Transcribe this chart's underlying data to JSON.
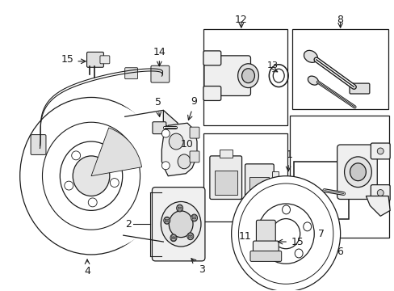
{
  "bg_color": "#ffffff",
  "fig_width": 4.89,
  "fig_height": 3.6,
  "dpi": 100,
  "line_color": "#1a1a1a",
  "fill_color": "#f5f5f5"
}
